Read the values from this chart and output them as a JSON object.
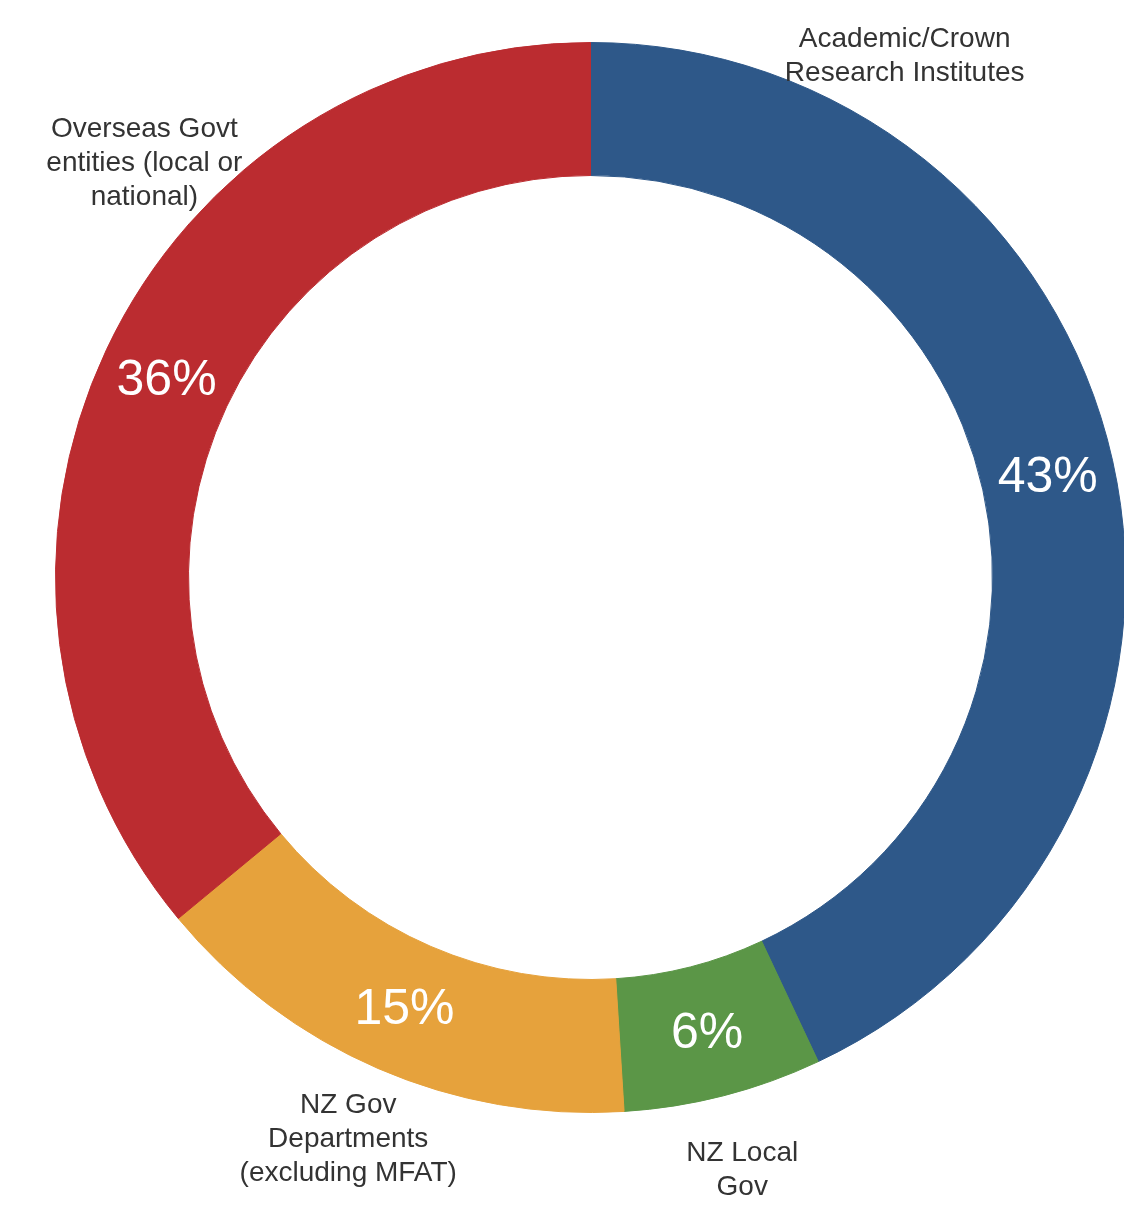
{
  "chart_data": {
    "type": "donut",
    "categories": [
      "Academic/Crown\nResearch Institutes",
      "NZ Local\nGov",
      "NZ Gov\nDepartments\n(excluding MFAT)",
      "Overseas Govt\nentities (local or\nnational)"
    ],
    "values": [
      43,
      6,
      15,
      36
    ],
    "colors": [
      "#2e5889",
      "#5b9647",
      "#e6a23c",
      "#bb2c30"
    ],
    "value_labels": [
      "43%",
      "6%",
      "15%",
      "36%"
    ]
  }
}
